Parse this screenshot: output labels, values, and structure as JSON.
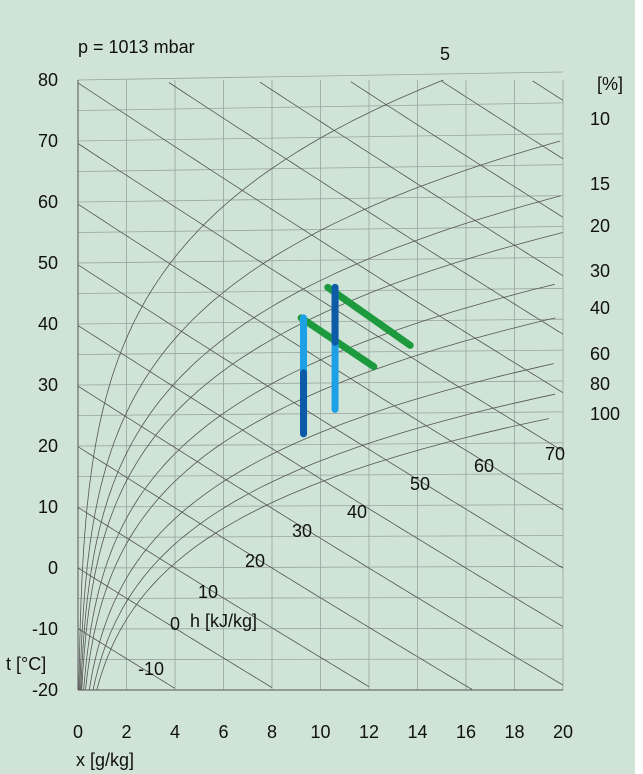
{
  "chart_data": {
    "type": "line",
    "title": "",
    "pressure_label": "p = 1013 mbar",
    "xlabel": "x [g/kg]",
    "ylabel": "t [°C]",
    "xlim": [
      0,
      20
    ],
    "ylim": [
      -20,
      80
    ],
    "x_ticks": [
      "0",
      "2",
      "4",
      "6",
      "8",
      "10",
      "12",
      "14",
      "16",
      "18",
      "20"
    ],
    "y_ticks": [
      "80",
      "70",
      "60",
      "50",
      "40",
      "30",
      "20",
      "10",
      "0",
      "-10",
      "-20"
    ],
    "rh_unit_label": "[%]",
    "rh_curves": [
      5,
      10,
      15,
      20,
      30,
      40,
      60,
      80,
      100
    ],
    "rh_labels": [
      "5",
      "10",
      "15",
      "20",
      "30",
      "40",
      "60",
      "80",
      "100"
    ],
    "enthalpy_unit_label": "h [kJ/kg]",
    "enthalpy_lines": [
      -10,
      0,
      10,
      20,
      30,
      40,
      50,
      60,
      70
    ],
    "enthalpy_labels": [
      "-10",
      "0",
      "10",
      "20",
      "30",
      "40",
      "50",
      "60",
      "70"
    ],
    "series": [
      {
        "color": "#1e9a3e",
        "segments": [
          [
            [
              9.2,
              41
            ],
            [
              12.2,
              33
            ]
          ],
          [
            [
              10.3,
              46
            ],
            [
              13.7,
              36.5
            ]
          ]
        ]
      },
      {
        "color": "#1ea0e6",
        "segments": [
          [
            [
              9.3,
              41
            ],
            [
              9.3,
              22
            ]
          ],
          [
            [
              10.6,
              46
            ],
            [
              10.6,
              26
            ]
          ]
        ]
      },
      {
        "color": "#0d5aa7",
        "segments": [
          [
            [
              9.3,
              32
            ],
            [
              9.3,
              22
            ]
          ],
          [
            [
              10.6,
              46
            ],
            [
              10.6,
              37
            ]
          ]
        ]
      }
    ]
  }
}
